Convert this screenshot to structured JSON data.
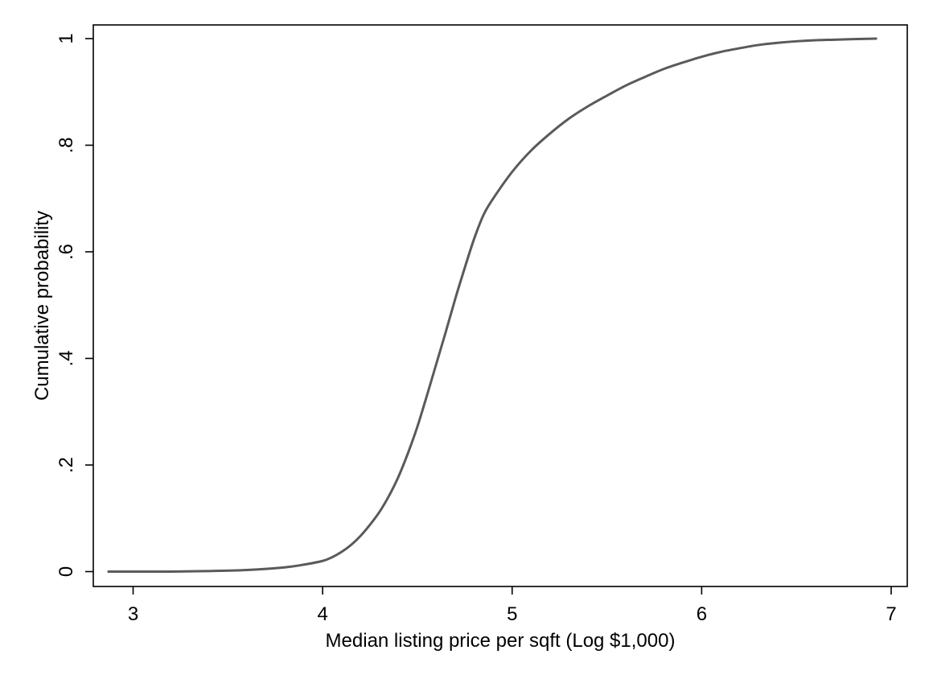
{
  "chart_data": {
    "type": "line",
    "title": "",
    "xlabel": "Median listing price per sqft (Log $1,000)",
    "ylabel": "Cumulative probability",
    "xlim": [
      2.8,
      7.0
    ],
    "ylim": [
      -0.03,
      1.03
    ],
    "x_ticks": [
      3,
      4,
      5,
      6,
      7
    ],
    "x_tick_labels": [
      "3",
      "4",
      "5",
      "6",
      "7"
    ],
    "y_ticks": [
      0,
      0.2,
      0.4,
      0.6,
      0.8,
      1
    ],
    "y_tick_labels": [
      "0",
      ".2",
      ".4",
      ".6",
      ".8",
      "1"
    ],
    "grid": false,
    "line_color": "#5a5a5a",
    "series": [
      {
        "x": [
          2.87,
          3.0,
          3.2,
          3.4,
          3.6,
          3.8,
          3.9,
          4.0,
          4.05,
          4.1,
          4.15,
          4.2,
          4.25,
          4.3,
          4.35,
          4.4,
          4.45,
          4.5,
          4.55,
          4.6,
          4.65,
          4.7,
          4.75,
          4.8,
          4.85,
          4.9,
          5.0,
          5.1,
          5.2,
          5.3,
          5.4,
          5.5,
          5.6,
          5.7,
          5.8,
          5.9,
          6.0,
          6.1,
          6.2,
          6.3,
          6.4,
          6.5,
          6.6,
          6.7,
          6.8,
          6.92
        ],
        "y": [
          0.0,
          0.0,
          0.0,
          0.001,
          0.003,
          0.008,
          0.013,
          0.02,
          0.027,
          0.037,
          0.05,
          0.067,
          0.088,
          0.112,
          0.142,
          0.178,
          0.222,
          0.272,
          0.33,
          0.39,
          0.45,
          0.512,
          0.57,
          0.625,
          0.67,
          0.7,
          0.75,
          0.79,
          0.822,
          0.85,
          0.873,
          0.893,
          0.912,
          0.928,
          0.943,
          0.955,
          0.966,
          0.975,
          0.982,
          0.988,
          0.992,
          0.995,
          0.997,
          0.998,
          0.999,
          1.0
        ]
      }
    ]
  }
}
